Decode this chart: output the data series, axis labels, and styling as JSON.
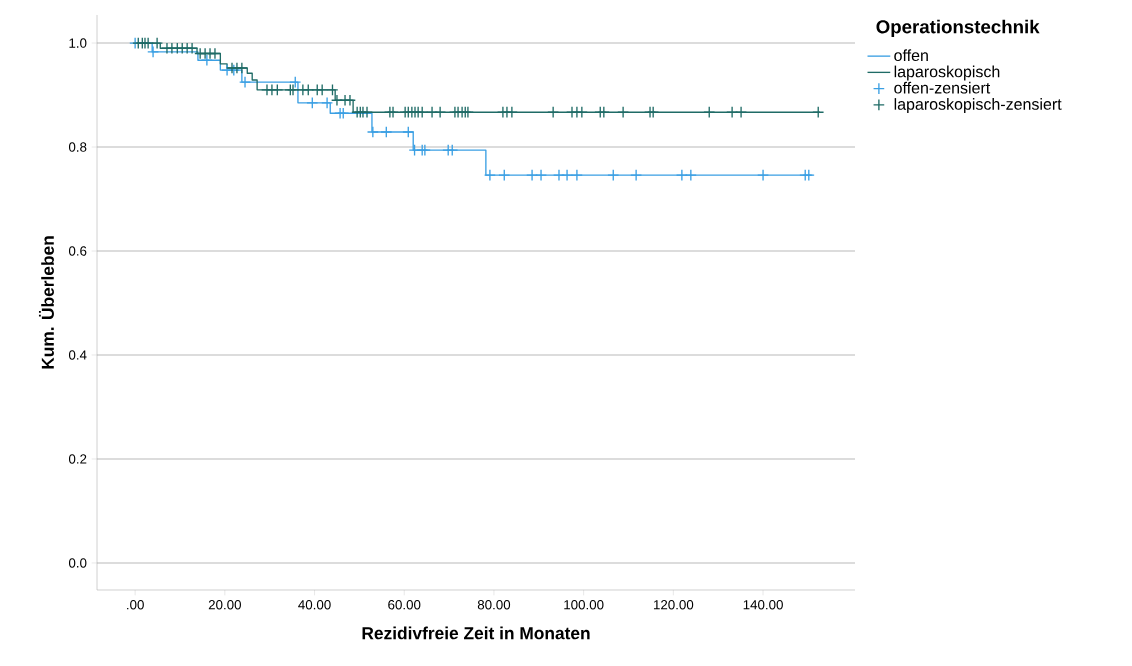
{
  "chart_data": {
    "type": "step",
    "xlabel": "Rezidivfreie Zeit in Monaten",
    "ylabel": "Kum. Überleben",
    "legend_title": "Operationstechnik",
    "legend": "right",
    "grid": "y",
    "xlim": [
      -8.5,
      160.5
    ],
    "ylim": [
      -0.052,
      1.054
    ],
    "xticks": [
      {
        "value": 0,
        "label": ".00"
      },
      {
        "value": 20,
        "label": "20.00"
      },
      {
        "value": 40,
        "label": "40.00"
      },
      {
        "value": 60,
        "label": "60.00"
      },
      {
        "value": 80,
        "label": "80.00"
      },
      {
        "value": 100,
        "label": "100.00"
      },
      {
        "value": 120,
        "label": "120.00"
      },
      {
        "value": 140,
        "label": "140.00"
      }
    ],
    "yticks": [
      {
        "value": 0,
        "label": "0.0"
      },
      {
        "value": 0.2,
        "label": "0.2"
      },
      {
        "value": 0.4,
        "label": "0.4"
      },
      {
        "value": 0.6,
        "label": "0.6"
      },
      {
        "value": 0.8,
        "label": "0.8"
      },
      {
        "value": 1,
        "label": "1.0"
      }
    ],
    "series": [
      {
        "name": "offen",
        "marker": "none",
        "color": "#3a9fe3",
        "x": [
          0,
          3.8,
          14,
          19,
          23.8,
          36.3,
          43.5,
          52.8,
          62,
          78.2,
          151
        ],
        "values": [
          1,
          0.983,
          0.967,
          0.948,
          0.925,
          0.885,
          0.865,
          0.829,
          0.794,
          0.746,
          0.746
        ]
      },
      {
        "name": "laparoskopisch",
        "marker": "none",
        "color": "#1f6b66",
        "x": [
          0,
          5.6,
          13.8,
          19,
          20.5,
          25,
          26.1,
          27.2,
          44.6,
          48.6,
          152.7
        ],
        "values": [
          1,
          0.99,
          0.98,
          0.96,
          0.952,
          0.942,
          0.929,
          0.91,
          0.89,
          0.867,
          0.867
        ]
      },
      {
        "name": "offen-zensiert",
        "type": "scatter",
        "marker": "cross",
        "color": "#3a9fe3",
        "x": [
          0,
          4,
          16,
          20.5,
          22,
          24.5,
          35.7,
          39.5,
          42.8,
          45.7,
          46.4,
          48.6,
          49.7,
          50.6,
          53,
          56,
          60.9,
          62.3,
          64,
          64.6,
          69.8,
          70.7,
          79.1,
          82.3,
          88.5,
          90.5,
          94.5,
          96.3,
          98.5,
          106.6,
          111.7,
          121.9,
          123.9,
          140,
          149.4,
          150.2
        ],
        "values": [
          1,
          0.983,
          0.967,
          0.948,
          0.948,
          0.925,
          0.925,
          0.885,
          0.885,
          0.865,
          0.865,
          null,
          null,
          null,
          0.829,
          0.829,
          0.829,
          0.794,
          0.794,
          0.794,
          0.794,
          0.794,
          0.746,
          0.746,
          0.746,
          0.746,
          0.746,
          0.746,
          0.746,
          0.746,
          0.746,
          0.746,
          0.746,
          0.746,
          0.746,
          0.746
        ]
      },
      {
        "name": "laparoskopisch-zensiert",
        "type": "scatter",
        "marker": "cross",
        "color": "#1f6b66",
        "x": [
          0.7,
          1.6,
          2.2,
          2.9,
          4.9,
          7.1,
          8.2,
          9.4,
          10.5,
          11.6,
          12.7,
          14.5,
          15.6,
          16.7,
          17.8,
          21.6,
          22.7,
          23.8,
          29.4,
          30.5,
          31.7,
          34.6,
          35.2,
          37.4,
          38.6,
          40.6,
          41.7,
          44,
          45,
          46.8,
          47.9,
          49.5,
          50.2,
          50.8,
          51.7,
          56.8,
          57.5,
          60.2,
          60.9,
          61.7,
          62.4,
          63.1,
          64,
          66.2,
          68,
          71.3,
          72,
          72.9,
          73.6,
          74.2,
          82,
          82.9,
          84,
          93.2,
          97.4,
          98.5,
          99.6,
          103.7,
          104.5,
          108.8,
          114.8,
          115.5,
          128,
          133.1,
          135.1,
          152.3
        ],
        "values": [
          1,
          1,
          1,
          1,
          1,
          0.99,
          0.99,
          0.99,
          0.99,
          0.99,
          0.99,
          0.98,
          0.98,
          0.98,
          0.98,
          0.952,
          0.952,
          0.952,
          0.91,
          0.91,
          0.91,
          0.91,
          0.91,
          0.91,
          0.91,
          0.91,
          0.91,
          0.91,
          0.89,
          0.89,
          0.89,
          0.867,
          0.867,
          0.867,
          0.867,
          0.867,
          0.867,
          0.867,
          0.867,
          0.867,
          0.867,
          0.867,
          0.867,
          0.867,
          0.867,
          0.867,
          0.867,
          0.867,
          0.867,
          0.867,
          0.867,
          0.867,
          0.867,
          0.867,
          0.867,
          0.867,
          0.867,
          0.867,
          0.867,
          0.867,
          0.867,
          0.867,
          0.867,
          0.867,
          0.867,
          0.867
        ]
      }
    ]
  }
}
